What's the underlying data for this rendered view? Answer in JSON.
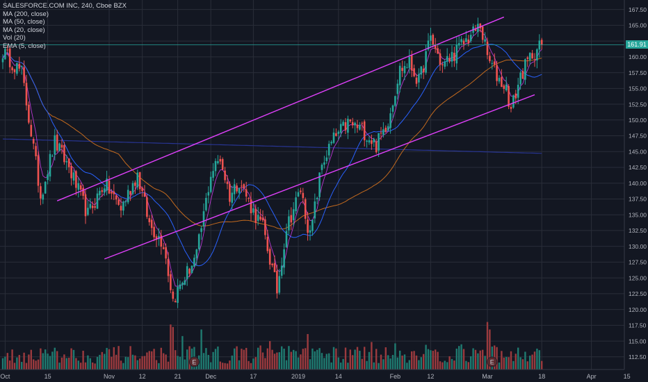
{
  "legend": {
    "symbol": "SALESFORCE.COM INC, 240, Cboe BZX",
    "indicators": [
      "MA (200, close)",
      "MA (50, close)",
      "MA (20, close)",
      "Vol (20)",
      "EMA (5, close)"
    ]
  },
  "colors": {
    "background": "#131722",
    "grid": "#2a2e39",
    "up": "#26a69a",
    "down": "#ef5350",
    "up_volume": "#1f7a70",
    "down_volume": "#9b3a3e",
    "channel": "#e040fb",
    "ma200": "#283593",
    "ma50": "#c46a1e",
    "ma20": "#2962ff",
    "ema5": "#e040fb",
    "last_price_line": "#26a69a",
    "axis_text": "#b2b5be",
    "earnings_badge": "#5a2a2e"
  },
  "chart_data": {
    "type": "candlestick",
    "title": "SALESFORCE.COM INC, 240, Cboe BZX",
    "y_axis": {
      "ylim": [
        110.5,
        169
      ],
      "ticks": [
        "167.50",
        "165.00",
        "162.50",
        "160.00",
        "157.50",
        "155.00",
        "152.50",
        "150.00",
        "147.50",
        "145.00",
        "142.50",
        "140.00",
        "137.50",
        "135.00",
        "132.50",
        "130.00",
        "127.50",
        "125.00",
        "122.50",
        "120.00",
        "117.50",
        "115.00",
        "112.50"
      ]
    },
    "x_axis": {
      "ticks": [
        {
          "label": "Oct",
          "index": 1
        },
        {
          "label": "15",
          "index": 19
        },
        {
          "label": "Nov",
          "index": 45
        },
        {
          "label": "12",
          "index": 59
        },
        {
          "label": "21",
          "index": 74
        },
        {
          "label": "Dec",
          "index": 88
        },
        {
          "label": "17",
          "index": 106
        },
        {
          "label": "2019",
          "index": 125
        },
        {
          "label": "14",
          "index": 142
        },
        {
          "label": "Feb",
          "index": 166
        },
        {
          "label": "12",
          "index": 181
        },
        {
          "label": "Mar",
          "index": 205
        },
        {
          "label": "18",
          "index": 228
        },
        {
          "label": "Apr",
          "index": 249
        },
        {
          "label": "15",
          "index": 264
        }
      ]
    },
    "last_price": 161.91,
    "price_checkpoints": [
      [
        0,
        160.8
      ],
      [
        8,
        157.5
      ],
      [
        12,
        148.0
      ],
      [
        16,
        138.0
      ],
      [
        22,
        146.5
      ],
      [
        28,
        142.5
      ],
      [
        36,
        135.0
      ],
      [
        43,
        140.0
      ],
      [
        50,
        136.0
      ],
      [
        57,
        141.5
      ],
      [
        62,
        133.5
      ],
      [
        68,
        130.5
      ],
      [
        72,
        121.5
      ],
      [
        76,
        124.5
      ],
      [
        82,
        128.5
      ],
      [
        88,
        141.5
      ],
      [
        92,
        144.0
      ],
      [
        96,
        138.0
      ],
      [
        100,
        140.5
      ],
      [
        106,
        135.5
      ],
      [
        110,
        133.0
      ],
      [
        116,
        123.0
      ],
      [
        120,
        133.0
      ],
      [
        126,
        139.0
      ],
      [
        130,
        131.5
      ],
      [
        135,
        143.0
      ],
      [
        140,
        147.0
      ],
      [
        146,
        149.5
      ],
      [
        152,
        148.5
      ],
      [
        158,
        146.0
      ],
      [
        163,
        150.0
      ],
      [
        168,
        158.0
      ],
      [
        172,
        159.0
      ],
      [
        176,
        156.0
      ],
      [
        181,
        163.0
      ],
      [
        186,
        158.5
      ],
      [
        192,
        161.0
      ],
      [
        197,
        163.0
      ],
      [
        202,
        165.0
      ],
      [
        205,
        160.0
      ],
      [
        209,
        157.0
      ],
      [
        213,
        155.0
      ],
      [
        215,
        151.5
      ],
      [
        219,
        157.0
      ],
      [
        224,
        160.5
      ],
      [
        228,
        161.9
      ]
    ],
    "channel": {
      "upper": [
        {
          "index": 23,
          "price": 137.2
        },
        {
          "index": 212,
          "price": 166.3
        }
      ],
      "lower": [
        {
          "index": 43,
          "price": 128.0
        },
        {
          "index": 225,
          "price": 154.0
        }
      ]
    },
    "earnings_markers": [
      {
        "label": "E",
        "index": 81
      },
      {
        "label": "E",
        "index": 207
      }
    ],
    "volume_spikes": [
      [
        71,
        0.9
      ],
      [
        72,
        0.85
      ],
      [
        84,
        0.8
      ],
      [
        205,
        0.95
      ],
      [
        206,
        0.8
      ]
    ]
  }
}
